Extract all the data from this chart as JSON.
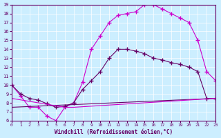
{
  "xlabel": "Windchill (Refroidissement éolien,°C)",
  "ylim": [
    6,
    19
  ],
  "xlim": [
    0,
    23
  ],
  "yticks": [
    6,
    7,
    8,
    9,
    10,
    11,
    12,
    13,
    14,
    15,
    16,
    17,
    18,
    19
  ],
  "xticks": [
    0,
    1,
    2,
    3,
    4,
    5,
    6,
    7,
    8,
    9,
    10,
    11,
    12,
    13,
    14,
    15,
    16,
    17,
    18,
    19,
    20,
    21,
    22,
    23
  ],
  "bg_color": "#cceeff",
  "line_color_dark": "#660066",
  "line_color_bright": "#cc00cc",
  "line1_x": [
    0,
    1,
    2,
    3,
    4,
    5,
    6,
    7,
    8,
    9,
    10,
    11,
    12,
    13,
    14,
    15,
    16,
    17,
    18,
    19,
    20,
    21,
    22,
    23
  ],
  "line1_y": [
    10.0,
    8.8,
    7.5,
    7.5,
    6.5,
    6.0,
    7.5,
    8.0,
    10.3,
    14.0,
    15.5,
    17.0,
    17.8,
    18.0,
    18.2,
    19.0,
    19.0,
    18.5,
    18.0,
    17.5,
    17.0,
    15.0,
    11.5,
    10.5
  ],
  "line2_x": [
    0,
    1,
    2,
    3,
    4,
    5,
    6,
    7,
    8,
    9,
    10,
    11,
    12,
    13,
    14,
    15,
    16,
    17,
    18,
    19,
    20,
    21,
    22,
    23
  ],
  "line2_y": [
    10.0,
    9.0,
    8.5,
    8.3,
    7.9,
    7.5,
    7.6,
    8.0,
    9.5,
    10.5,
    11.5,
    13.0,
    14.0,
    14.0,
    13.8,
    13.5,
    13.0,
    12.8,
    12.5,
    12.3,
    12.0,
    11.5,
    8.5,
    8.5
  ],
  "line3_x": [
    0,
    23
  ],
  "line3_y": [
    7.5,
    8.5
  ],
  "line4_x": [
    0,
    6,
    7,
    23
  ],
  "line4_y": [
    8.5,
    7.5,
    7.5,
    8.5
  ],
  "marker": "+",
  "markersize": 4
}
